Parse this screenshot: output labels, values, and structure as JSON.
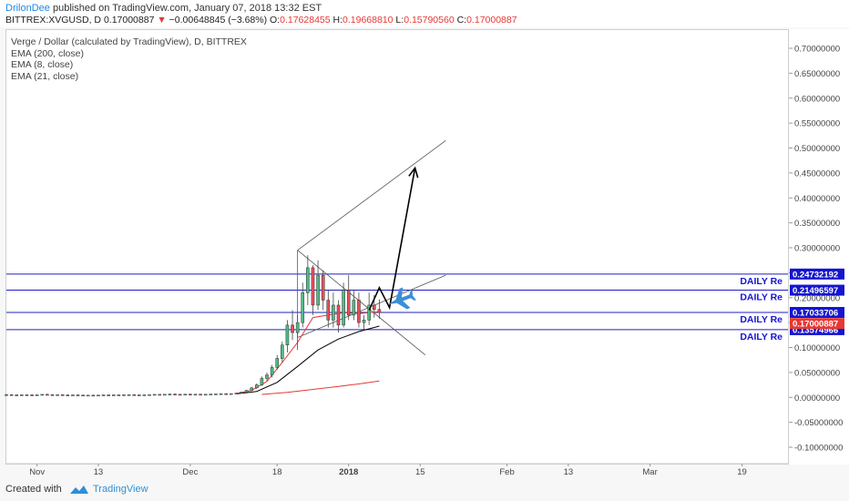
{
  "header": {
    "author": "DrilonDee",
    "published_text": "published on TradingView.com, January 07, 2018 13:32 EST",
    "symbol_line": "BITTREX:XVGUSD, D",
    "last": "0.17000887",
    "arrow": "▼",
    "change": "−0.00648845 (−3.68%)",
    "o_label": "O:",
    "o": "0.17628455",
    "h_label": "H:",
    "h": "0.19668810",
    "l_label": "L:",
    "l": "0.15790560",
    "c_label": "C:",
    "c": "0.17000887"
  },
  "legend": {
    "title": "Verge / Dollar (calculated by TradingView), D, BITTREX",
    "ema200": "EMA (200, close)",
    "ema8": "EMA (8, close)",
    "ema21": "EMA (21, close)"
  },
  "footer": {
    "created_with": "Created with",
    "brand": "TradingView"
  },
  "chart_data": {
    "type": "candlestick",
    "symbol": "BITTREX:XVGUSD",
    "interval": "D",
    "ylim": [
      -0.125,
      0.725
    ],
    "y_ticks": [
      0.7,
      0.65,
      0.6,
      0.55,
      0.5,
      0.45,
      0.4,
      0.35,
      0.3,
      0.25,
      0.2,
      0.15,
      0.1,
      0.05,
      0.0,
      -0.05,
      -0.1
    ],
    "y_tick_labels": [
      "0.70000000",
      "0.65000000",
      "0.60000000",
      "0.55000000",
      "0.50000000",
      "0.45000000",
      "0.40000000",
      "0.35000000",
      "0.30000000",
      "0.25000000",
      "0.20000000",
      "0.15000000",
      "0.10000000",
      "0.05000000",
      "0.00000000",
      "-0.05000000",
      "-0.10000000"
    ],
    "x_range": [
      "2017-10-26",
      "2018-03-28"
    ],
    "x_ticks": [
      {
        "date": "2017-11-01",
        "label": "Nov"
      },
      {
        "date": "2017-11-13",
        "label": "13"
      },
      {
        "date": "2017-12-01",
        "label": "Dec"
      },
      {
        "date": "2017-12-18",
        "label": "18"
      },
      {
        "date": "2018-01-01",
        "label": "2018"
      },
      {
        "date": "2018-01-15",
        "label": "15"
      },
      {
        "date": "2018-02-01",
        "label": "Feb"
      },
      {
        "date": "2018-02-13",
        "label": "13"
      },
      {
        "date": "2018-03-01",
        "label": "Mar"
      },
      {
        "date": "2018-03-19",
        "label": "19"
      }
    ],
    "colors": {
      "up": "#53b987",
      "down": "#eb4d5c",
      "level_line": "#1f1fbf",
      "level_box": "#1515d0",
      "last_price": "#e53935",
      "ema200": "#e53935",
      "ema8": "#e53935",
      "ema21": "#000000",
      "arrow_icon": "#3a8fd6"
    },
    "candles": [
      {
        "d": "2017-10-26",
        "o": 0.005,
        "h": 0.007,
        "l": 0.004,
        "c": 0.0055
      },
      {
        "d": "2017-10-27",
        "o": 0.0055,
        "h": 0.0065,
        "l": 0.0045,
        "c": 0.005
      },
      {
        "d": "2017-10-28",
        "o": 0.005,
        "h": 0.006,
        "l": 0.004,
        "c": 0.0048
      },
      {
        "d": "2017-10-29",
        "o": 0.0048,
        "h": 0.006,
        "l": 0.004,
        "c": 0.0052
      },
      {
        "d": "2017-10-30",
        "o": 0.0052,
        "h": 0.0062,
        "l": 0.0044,
        "c": 0.005
      },
      {
        "d": "2017-10-31",
        "o": 0.005,
        "h": 0.006,
        "l": 0.0042,
        "c": 0.0046
      },
      {
        "d": "2017-11-01",
        "o": 0.0046,
        "h": 0.0058,
        "l": 0.004,
        "c": 0.0052
      },
      {
        "d": "2017-11-02",
        "o": 0.0052,
        "h": 0.0065,
        "l": 0.0045,
        "c": 0.006
      },
      {
        "d": "2017-11-03",
        "o": 0.006,
        "h": 0.0075,
        "l": 0.005,
        "c": 0.0055
      },
      {
        "d": "2017-11-04",
        "o": 0.0055,
        "h": 0.0065,
        "l": 0.0045,
        "c": 0.005
      },
      {
        "d": "2017-11-05",
        "o": 0.005,
        "h": 0.006,
        "l": 0.0042,
        "c": 0.0054
      },
      {
        "d": "2017-11-06",
        "o": 0.0054,
        "h": 0.0062,
        "l": 0.0046,
        "c": 0.0049
      },
      {
        "d": "2017-11-07",
        "o": 0.0049,
        "h": 0.006,
        "l": 0.004,
        "c": 0.0045
      },
      {
        "d": "2017-11-08",
        "o": 0.0045,
        "h": 0.0055,
        "l": 0.0038,
        "c": 0.005
      },
      {
        "d": "2017-11-09",
        "o": 0.005,
        "h": 0.0058,
        "l": 0.0042,
        "c": 0.0046
      },
      {
        "d": "2017-11-10",
        "o": 0.0046,
        "h": 0.0052,
        "l": 0.0036,
        "c": 0.004
      },
      {
        "d": "2017-11-11",
        "o": 0.004,
        "h": 0.005,
        "l": 0.0035,
        "c": 0.0044
      },
      {
        "d": "2017-11-12",
        "o": 0.0044,
        "h": 0.0052,
        "l": 0.0038,
        "c": 0.0041
      },
      {
        "d": "2017-11-13",
        "o": 0.0041,
        "h": 0.005,
        "l": 0.0036,
        "c": 0.0046
      },
      {
        "d": "2017-11-14",
        "o": 0.0046,
        "h": 0.0055,
        "l": 0.004,
        "c": 0.005
      },
      {
        "d": "2017-11-15",
        "o": 0.005,
        "h": 0.0058,
        "l": 0.0044,
        "c": 0.0047
      },
      {
        "d": "2017-11-16",
        "o": 0.0047,
        "h": 0.0055,
        "l": 0.0041,
        "c": 0.0051
      },
      {
        "d": "2017-11-17",
        "o": 0.0051,
        "h": 0.0058,
        "l": 0.0045,
        "c": 0.0048
      },
      {
        "d": "2017-11-18",
        "o": 0.0048,
        "h": 0.0055,
        "l": 0.0042,
        "c": 0.0052
      },
      {
        "d": "2017-11-19",
        "o": 0.0052,
        "h": 0.006,
        "l": 0.0046,
        "c": 0.0055
      },
      {
        "d": "2017-11-20",
        "o": 0.0055,
        "h": 0.0063,
        "l": 0.0048,
        "c": 0.005
      },
      {
        "d": "2017-11-21",
        "o": 0.005,
        "h": 0.0058,
        "l": 0.0043,
        "c": 0.0047
      },
      {
        "d": "2017-11-22",
        "o": 0.0047,
        "h": 0.0055,
        "l": 0.0041,
        "c": 0.0052
      },
      {
        "d": "2017-11-23",
        "o": 0.0052,
        "h": 0.006,
        "l": 0.0046,
        "c": 0.0056
      },
      {
        "d": "2017-11-24",
        "o": 0.0056,
        "h": 0.0065,
        "l": 0.005,
        "c": 0.006
      },
      {
        "d": "2017-11-25",
        "o": 0.006,
        "h": 0.0068,
        "l": 0.0052,
        "c": 0.0057
      },
      {
        "d": "2017-11-26",
        "o": 0.0057,
        "h": 0.0065,
        "l": 0.005,
        "c": 0.0062
      },
      {
        "d": "2017-11-27",
        "o": 0.0062,
        "h": 0.0072,
        "l": 0.0055,
        "c": 0.0066
      },
      {
        "d": "2017-11-28",
        "o": 0.0066,
        "h": 0.0075,
        "l": 0.0058,
        "c": 0.0061
      },
      {
        "d": "2017-11-29",
        "o": 0.0061,
        "h": 0.007,
        "l": 0.0052,
        "c": 0.0058
      },
      {
        "d": "2017-11-30",
        "o": 0.0058,
        "h": 0.0068,
        "l": 0.005,
        "c": 0.0064
      },
      {
        "d": "2017-12-01",
        "o": 0.0064,
        "h": 0.0072,
        "l": 0.0056,
        "c": 0.006
      },
      {
        "d": "2017-12-02",
        "o": 0.006,
        "h": 0.0068,
        "l": 0.0053,
        "c": 0.0063
      },
      {
        "d": "2017-12-03",
        "o": 0.0063,
        "h": 0.007,
        "l": 0.0055,
        "c": 0.0058
      },
      {
        "d": "2017-12-04",
        "o": 0.0058,
        "h": 0.0066,
        "l": 0.005,
        "c": 0.0062
      },
      {
        "d": "2017-12-05",
        "o": 0.0062,
        "h": 0.007,
        "l": 0.0055,
        "c": 0.0066
      },
      {
        "d": "2017-12-06",
        "o": 0.0066,
        "h": 0.0075,
        "l": 0.0058,
        "c": 0.007
      },
      {
        "d": "2017-12-07",
        "o": 0.007,
        "h": 0.008,
        "l": 0.006,
        "c": 0.0074
      },
      {
        "d": "2017-12-08",
        "o": 0.0074,
        "h": 0.0085,
        "l": 0.0065,
        "c": 0.007
      },
      {
        "d": "2017-12-09",
        "o": 0.007,
        "h": 0.008,
        "l": 0.0062,
        "c": 0.0076
      },
      {
        "d": "2017-12-10",
        "o": 0.0076,
        "h": 0.009,
        "l": 0.0068,
        "c": 0.0085
      },
      {
        "d": "2017-12-11",
        "o": 0.0085,
        "h": 0.011,
        "l": 0.0078,
        "c": 0.0105
      },
      {
        "d": "2017-12-12",
        "o": 0.0105,
        "h": 0.015,
        "l": 0.0095,
        "c": 0.014
      },
      {
        "d": "2017-12-13",
        "o": 0.014,
        "h": 0.021,
        "l": 0.0125,
        "c": 0.019
      },
      {
        "d": "2017-12-14",
        "o": 0.019,
        "h": 0.028,
        "l": 0.017,
        "c": 0.025
      },
      {
        "d": "2017-12-15",
        "o": 0.025,
        "h": 0.042,
        "l": 0.023,
        "c": 0.038
      },
      {
        "d": "2017-12-16",
        "o": 0.038,
        "h": 0.05,
        "l": 0.033,
        "c": 0.045
      },
      {
        "d": "2017-12-17",
        "o": 0.045,
        "h": 0.065,
        "l": 0.04,
        "c": 0.06
      },
      {
        "d": "2017-12-18",
        "o": 0.06,
        "h": 0.085,
        "l": 0.055,
        "c": 0.078
      },
      {
        "d": "2017-12-19",
        "o": 0.078,
        "h": 0.112,
        "l": 0.07,
        "c": 0.105
      },
      {
        "d": "2017-12-20",
        "o": 0.105,
        "h": 0.155,
        "l": 0.09,
        "c": 0.145
      },
      {
        "d": "2017-12-21",
        "o": 0.145,
        "h": 0.175,
        "l": 0.115,
        "c": 0.13
      },
      {
        "d": "2017-12-22",
        "o": 0.13,
        "h": 0.165,
        "l": 0.095,
        "c": 0.15
      },
      {
        "d": "2017-12-23",
        "o": 0.15,
        "h": 0.23,
        "l": 0.14,
        "c": 0.21
      },
      {
        "d": "2017-12-24",
        "o": 0.21,
        "h": 0.285,
        "l": 0.185,
        "c": 0.26
      },
      {
        "d": "2017-12-25",
        "o": 0.26,
        "h": 0.265,
        "l": 0.165,
        "c": 0.185
      },
      {
        "d": "2017-12-26",
        "o": 0.185,
        "h": 0.275,
        "l": 0.175,
        "c": 0.245
      },
      {
        "d": "2017-12-27",
        "o": 0.245,
        "h": 0.255,
        "l": 0.175,
        "c": 0.195
      },
      {
        "d": "2017-12-28",
        "o": 0.195,
        "h": 0.215,
        "l": 0.14,
        "c": 0.155
      },
      {
        "d": "2017-12-29",
        "o": 0.155,
        "h": 0.21,
        "l": 0.14,
        "c": 0.185
      },
      {
        "d": "2017-12-30",
        "o": 0.185,
        "h": 0.195,
        "l": 0.13,
        "c": 0.145
      },
      {
        "d": "2017-12-31",
        "o": 0.145,
        "h": 0.23,
        "l": 0.14,
        "c": 0.215
      },
      {
        "d": "2018-01-01",
        "o": 0.215,
        "h": 0.245,
        "l": 0.155,
        "c": 0.165
      },
      {
        "d": "2018-01-02",
        "o": 0.165,
        "h": 0.215,
        "l": 0.155,
        "c": 0.195
      },
      {
        "d": "2018-01-03",
        "o": 0.195,
        "h": 0.21,
        "l": 0.14,
        "c": 0.15
      },
      {
        "d": "2018-01-04",
        "o": 0.15,
        "h": 0.165,
        "l": 0.135,
        "c": 0.155
      },
      {
        "d": "2018-01-05",
        "o": 0.155,
        "h": 0.21,
        "l": 0.145,
        "c": 0.185
      },
      {
        "d": "2018-01-06",
        "o": 0.185,
        "h": 0.205,
        "l": 0.16,
        "c": 0.1763
      },
      {
        "d": "2018-01-07",
        "o": 0.1763,
        "h": 0.1967,
        "l": 0.1579,
        "c": 0.17
      }
    ],
    "ema200": [
      {
        "d": "2017-12-15",
        "v": 0.006
      },
      {
        "d": "2017-12-20",
        "v": 0.01
      },
      {
        "d": "2017-12-25",
        "v": 0.016
      },
      {
        "d": "2017-12-30",
        "v": 0.022
      },
      {
        "d": "2018-01-03",
        "v": 0.027
      },
      {
        "d": "2018-01-07",
        "v": 0.033
      }
    ],
    "ema8": [
      {
        "d": "2017-12-10",
        "v": 0.008
      },
      {
        "d": "2017-12-13",
        "v": 0.014
      },
      {
        "d": "2017-12-16",
        "v": 0.032
      },
      {
        "d": "2017-12-19",
        "v": 0.07
      },
      {
        "d": "2017-12-22",
        "v": 0.11
      },
      {
        "d": "2017-12-25",
        "v": 0.16
      },
      {
        "d": "2017-12-28",
        "v": 0.165
      },
      {
        "d": "2017-12-31",
        "v": 0.17
      },
      {
        "d": "2018-01-03",
        "v": 0.168
      },
      {
        "d": "2018-01-05",
        "v": 0.17
      },
      {
        "d": "2018-01-07",
        "v": 0.172
      }
    ],
    "ema21": [
      {
        "d": "2017-12-10",
        "v": 0.007
      },
      {
        "d": "2017-12-14",
        "v": 0.012
      },
      {
        "d": "2017-12-18",
        "v": 0.03
      },
      {
        "d": "2017-12-22",
        "v": 0.062
      },
      {
        "d": "2017-12-26",
        "v": 0.095
      },
      {
        "d": "2017-12-30",
        "v": 0.117
      },
      {
        "d": "2018-01-03",
        "v": 0.132
      },
      {
        "d": "2018-01-07",
        "v": 0.143
      }
    ],
    "horizontal_levels": [
      {
        "price": 0.24732192,
        "label": "DAILY Re",
        "price_label": "0.24732192"
      },
      {
        "price": 0.21496597,
        "label": "DAILY Re",
        "price_label": "0.21496597"
      },
      {
        "price": 0.17033706,
        "label": "DAILY Re",
        "price_label": "0.17033706"
      },
      {
        "price": 0.13574966,
        "label": "DAILY Re",
        "price_label": "0.13574966"
      }
    ],
    "last_price": {
      "price": 0.17000887,
      "label": "0.17000887"
    },
    "trend_lines": [
      {
        "from": {
          "d": "2017-12-22",
          "v": 0.12
        },
        "to": {
          "d": "2018-01-20",
          "v": 0.245
        }
      },
      {
        "from": {
          "d": "2017-12-22",
          "v": 0.295
        },
        "to": {
          "d": "2018-01-16",
          "v": 0.085
        }
      },
      {
        "from": {
          "d": "2017-12-22",
          "v": 0.295
        },
        "to": {
          "d": "2018-01-20",
          "v": 0.515
        }
      },
      {
        "from": {
          "d": "2017-12-22",
          "v": 0.295
        },
        "to": {
          "d": "2017-12-22",
          "v": 0.12
        }
      }
    ],
    "projection_path": [
      {
        "d": "2018-01-05",
        "v": 0.175
      },
      {
        "d": "2018-01-07",
        "v": 0.22
      },
      {
        "d": "2018-01-09",
        "v": 0.18
      },
      {
        "d": "2018-01-14",
        "v": 0.46
      }
    ],
    "icon": {
      "name": "airplane-icon",
      "d": "2018-01-11",
      "v": 0.195
    }
  }
}
